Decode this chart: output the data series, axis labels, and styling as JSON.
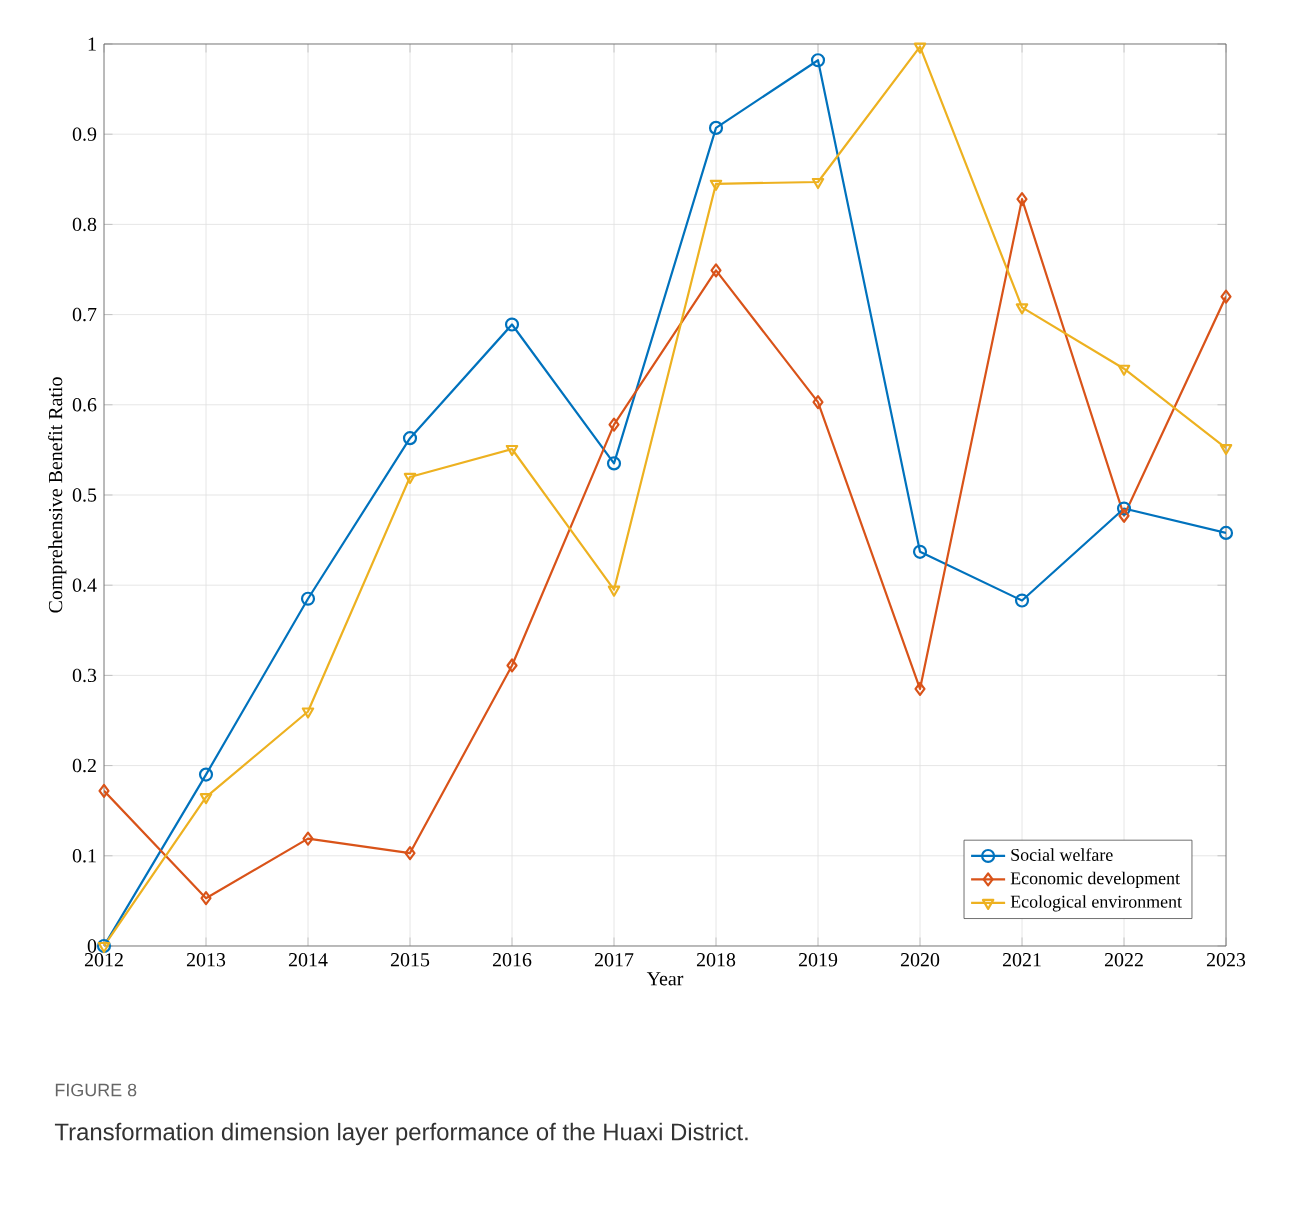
{
  "chart_data": {
    "type": "line",
    "xlabel": "Year",
    "ylabel": "Comprehensive Benefit Ratio",
    "categories": [
      "2012",
      "2013",
      "2014",
      "2015",
      "2016",
      "2017",
      "2018",
      "2019",
      "2020",
      "2021",
      "2022",
      "2023"
    ],
    "series": [
      {
        "name": "Social welfare",
        "color": "#0072bd",
        "marker": "circle",
        "values": [
          0,
          0.19,
          0.385,
          0.563,
          0.689,
          0.535,
          0.907,
          0.982,
          0.437,
          0.383,
          0.485,
          0.458
        ]
      },
      {
        "name": "Economic development",
        "color": "#d95319",
        "marker": "diamond",
        "values": [
          0.172,
          0.053,
          0.119,
          0.103,
          0.311,
          0.578,
          0.749,
          0.603,
          0.285,
          0.828,
          0.477,
          0.72
        ]
      },
      {
        "name": "Ecological environment",
        "color": "#edb120",
        "marker": "triangle",
        "values": [
          0,
          0.165,
          0.26,
          0.52,
          0.551,
          0.395,
          0.845,
          0.847,
          0.997,
          0.708,
          0.64,
          0.552
        ]
      }
    ],
    "ylim": [
      0,
      1
    ],
    "yticks": [
      0,
      0.1,
      0.2,
      0.3,
      0.4,
      0.5,
      0.6,
      0.7,
      0.8,
      0.9,
      1
    ],
    "grid": true,
    "legend": "bottom right",
    "line_style": "solid",
    "annotations": [
      "FIGURE 8",
      "Transformation dimension layer performance of the Huaxi District."
    ]
  }
}
